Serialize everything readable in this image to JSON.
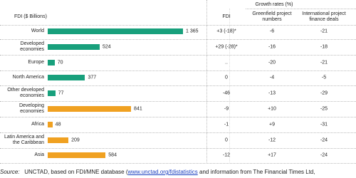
{
  "chart_data": {
    "type": "bar",
    "orientation": "horizontal",
    "title": "FDI ($ Billions)",
    "categories": [
      "World",
      "Developed economies",
      "Europe",
      "North America",
      "Other developed economies",
      "Developing economies",
      "Africa",
      "Latin America and the Caribbean",
      "Asia"
    ],
    "values": [
      1365,
      524,
      70,
      377,
      77,
      841,
      48,
      209,
      584
    ],
    "value_labels": [
      "1 365",
      "524",
      "70",
      "377",
      "77",
      "841",
      "48",
      "209",
      "584"
    ],
    "colors": [
      "#18a07c",
      "#18a07c",
      "#18a07c",
      "#18a07c",
      "#18a07c",
      "#f0a121",
      "#f0a121",
      "#f0a121",
      "#f0a121"
    ]
  },
  "table": {
    "title": "Growth rates (%)",
    "columns": [
      "FDI",
      "Greenfield project numbers",
      "International project finance deals"
    ],
    "rows": [
      [
        "+3 (-18)*",
        "-6",
        "-21"
      ],
      [
        "+29 (-28)*",
        "-16",
        "-18"
      ],
      [
        "..",
        "-20",
        "-21"
      ],
      [
        "0",
        "-4",
        "-5"
      ],
      [
        "-46",
        "-13",
        "-29"
      ],
      [
        "-9",
        "+10",
        "-25"
      ],
      [
        "-1",
        "+9",
        "-31"
      ],
      [
        "0",
        "-12",
        "-24"
      ],
      [
        "-12",
        "+17",
        "-24"
      ]
    ]
  },
  "source": {
    "label": "Source:",
    "text": "UNCTAD, based on FDI/MNE database (",
    "link": "www.unctad.org/fdistatistics",
    "rest": " and information from The Financial Times Ltd,"
  }
}
